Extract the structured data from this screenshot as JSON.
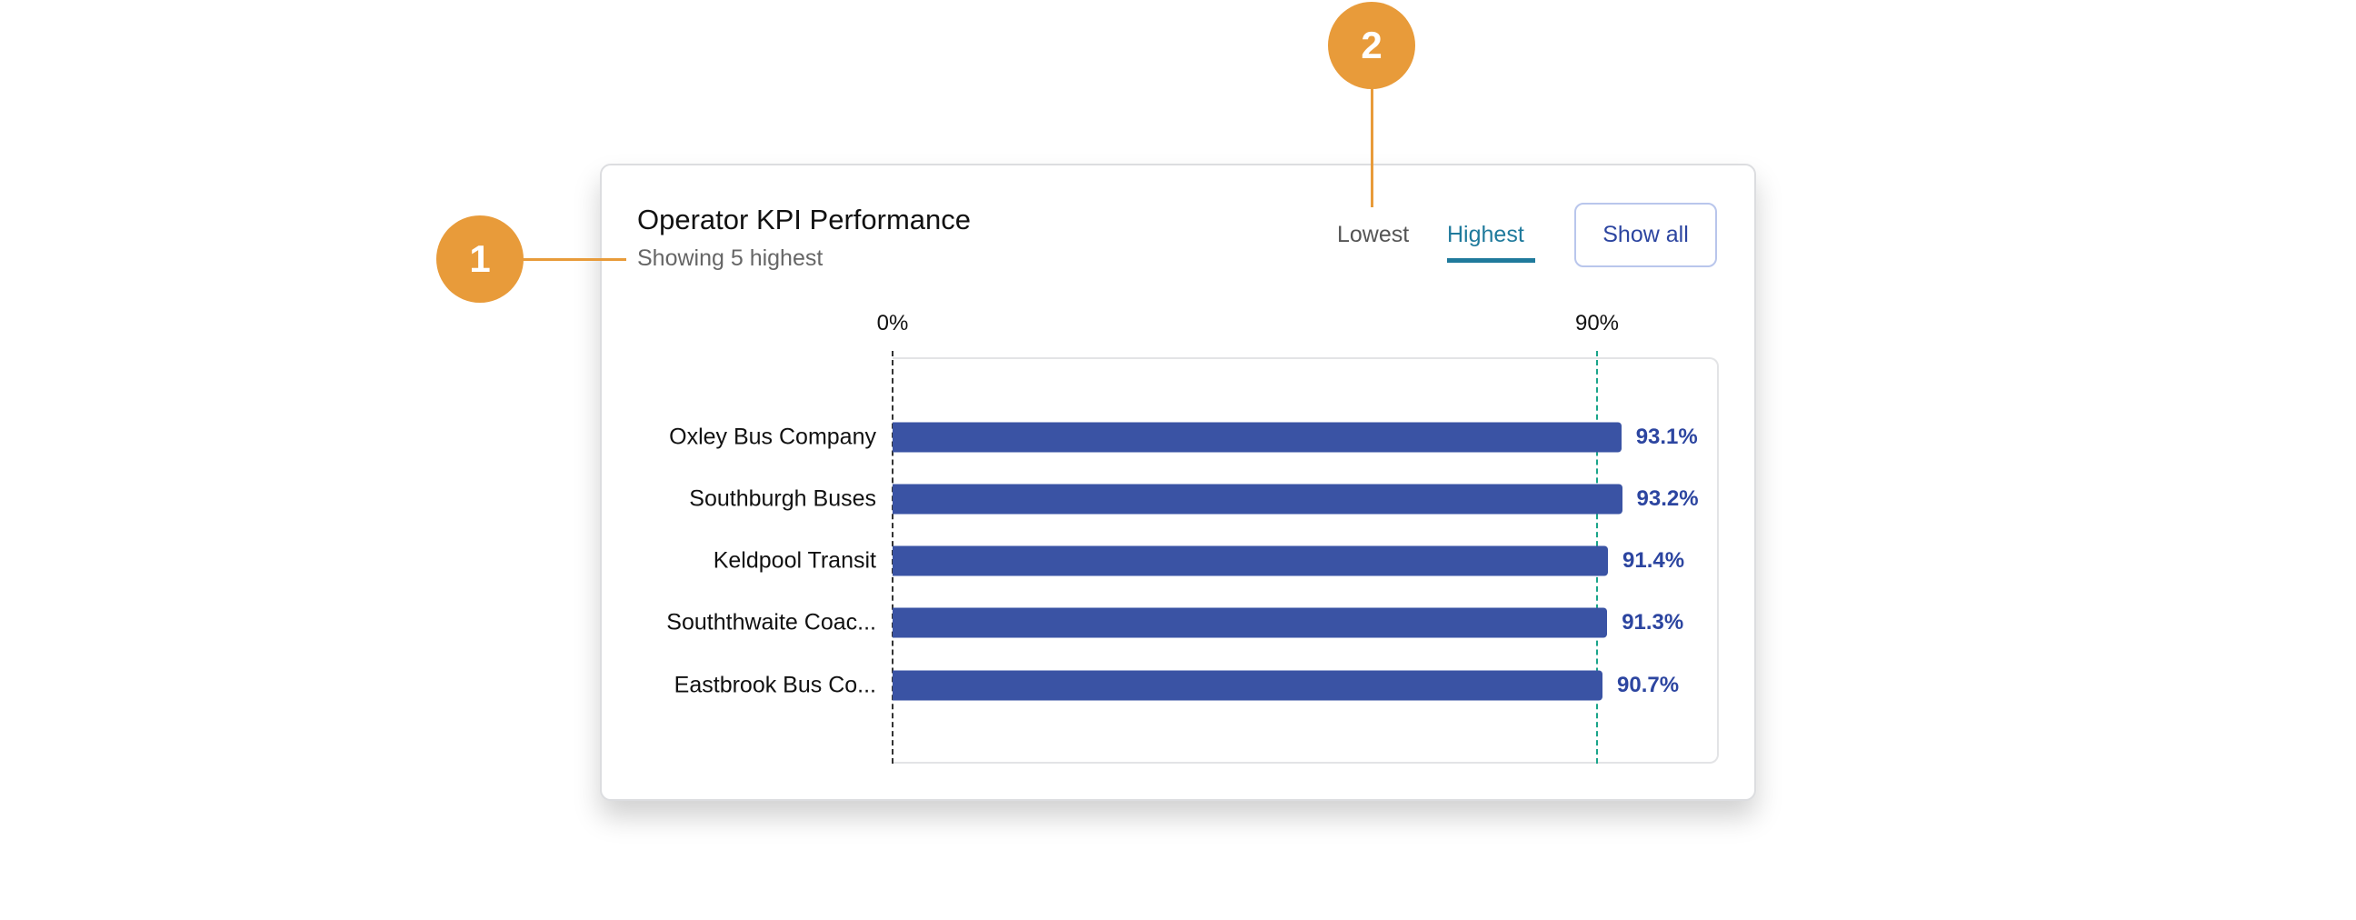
{
  "card": {
    "title": "Operator KPI Performance",
    "subtitle": "Showing 5 highest",
    "tabs": [
      {
        "label": "Lowest",
        "active": false
      },
      {
        "label": "Highest",
        "active": true
      }
    ],
    "show_all_label": "Show all"
  },
  "callouts": [
    "1",
    "2"
  ],
  "colors": {
    "bar": "#3a53a4",
    "active_tab": "#1f7a9c",
    "target_line": "#1aa58a",
    "callout": "#e89b3a"
  },
  "chart_data": {
    "type": "bar",
    "orientation": "horizontal",
    "tick_labels": [
      "0%",
      "90%"
    ],
    "ticks": [
      0,
      90
    ],
    "target": 90,
    "categories": [
      "Oxley Bus Company",
      "Southburgh Buses",
      "Keldpool Transit",
      "Souththwaite Coac...",
      "Eastbrook Bus Co..."
    ],
    "values": [
      93.1,
      93.2,
      91.4,
      91.3,
      90.7
    ],
    "value_labels": [
      "93.1%",
      "93.2%",
      "91.4%",
      "91.3%",
      "90.7%"
    ]
  }
}
